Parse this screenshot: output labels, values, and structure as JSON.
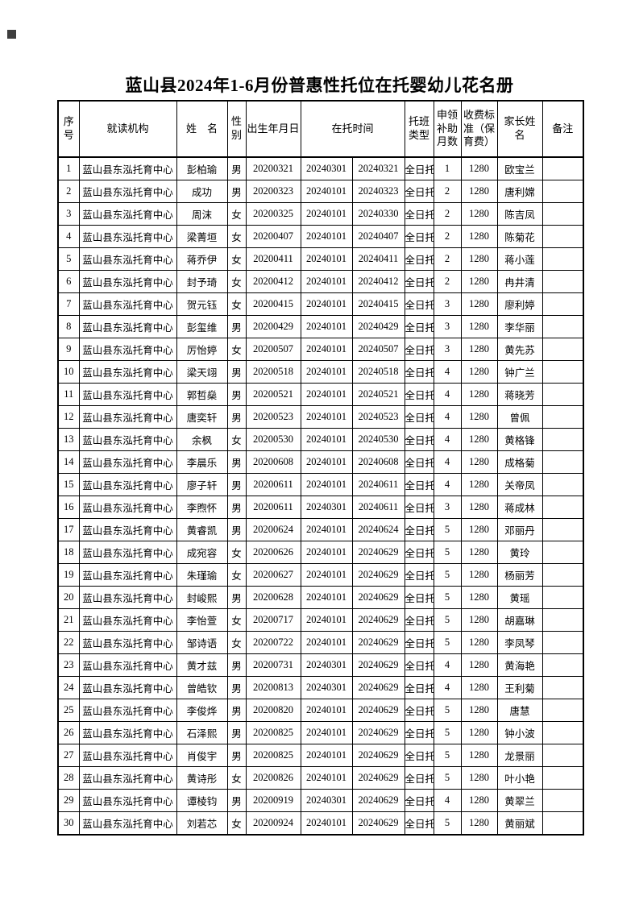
{
  "page": {
    "title": "蓝山县2024年1-6月份普惠性托位在托婴幼儿花名册"
  },
  "colors": {
    "ink": "#000000",
    "paper": "#ffffff"
  },
  "table": {
    "headers": {
      "no": "序号",
      "org": "就读机构",
      "name": "姓　名",
      "gender": "性别",
      "birth": "出生年月日",
      "period": "在托时间",
      "type": "托班类型",
      "months": "申领补助月数",
      "fee": "收费标准（保育费）",
      "parent": "家长姓名",
      "note": "备注"
    },
    "columns": [
      "no",
      "org",
      "name",
      "gender",
      "birth",
      "start",
      "end",
      "type",
      "months",
      "fee",
      "parent",
      "note"
    ],
    "rows": [
      [
        "1",
        "蓝山县东泓托育中心",
        "彭柏瑜",
        "男",
        "20200321",
        "20240301",
        "20240321",
        "全日托",
        "1",
        "1280",
        "欧宝兰",
        ""
      ],
      [
        "2",
        "蓝山县东泓托育中心",
        "成功",
        "男",
        "20200323",
        "20240101",
        "20240323",
        "全日托",
        "2",
        "1280",
        "唐利嫦",
        ""
      ],
      [
        "3",
        "蓝山县东泓托育中心",
        "周沫",
        "女",
        "20200325",
        "20240101",
        "20240330",
        "全日托",
        "2",
        "1280",
        "陈吉凤",
        ""
      ],
      [
        "4",
        "蓝山县东泓托育中心",
        "梁菁垣",
        "女",
        "20200407",
        "20240101",
        "20240407",
        "全日托",
        "2",
        "1280",
        "陈菊花",
        ""
      ],
      [
        "5",
        "蓝山县东泓托育中心",
        "蒋乔伊",
        "女",
        "20200411",
        "20240101",
        "20240411",
        "全日托",
        "2",
        "1280",
        "蒋小莲",
        ""
      ],
      [
        "6",
        "蓝山县东泓托育中心",
        "封予琦",
        "女",
        "20200412",
        "20240101",
        "20240412",
        "全日托",
        "2",
        "1280",
        "冉井清",
        ""
      ],
      [
        "7",
        "蓝山县东泓托育中心",
        "贺元钰",
        "女",
        "20200415",
        "20240101",
        "20240415",
        "全日托",
        "3",
        "1280",
        "廖利婷",
        ""
      ],
      [
        "8",
        "蓝山县东泓托育中心",
        "彭玺维",
        "男",
        "20200429",
        "20240101",
        "20240429",
        "全日托",
        "3",
        "1280",
        "李华丽",
        ""
      ],
      [
        "9",
        "蓝山县东泓托育中心",
        "厉怡婷",
        "女",
        "20200507",
        "20240101",
        "20240507",
        "全日托",
        "3",
        "1280",
        "黄先苏",
        ""
      ],
      [
        "10",
        "蓝山县东泓托育中心",
        "梁天翊",
        "男",
        "20200518",
        "20240101",
        "20240518",
        "全日托",
        "4",
        "1280",
        "钟广兰",
        ""
      ],
      [
        "11",
        "蓝山县东泓托育中心",
        "郭哲燊",
        "男",
        "20200521",
        "20240101",
        "20240521",
        "全日托",
        "4",
        "1280",
        "蒋晓芳",
        ""
      ],
      [
        "12",
        "蓝山县东泓托育中心",
        "唐奕轩",
        "男",
        "20200523",
        "20240101",
        "20240523",
        "全日托",
        "4",
        "1280",
        "曾佩",
        ""
      ],
      [
        "13",
        "蓝山县东泓托育中心",
        "余枫",
        "女",
        "20200530",
        "20240101",
        "20240530",
        "全日托",
        "4",
        "1280",
        "黄格锋",
        ""
      ],
      [
        "14",
        "蓝山县东泓托育中心",
        "李晨乐",
        "男",
        "20200608",
        "20240101",
        "20240608",
        "全日托",
        "4",
        "1280",
        "成格菊",
        ""
      ],
      [
        "15",
        "蓝山县东泓托育中心",
        "廖子轩",
        "男",
        "20200611",
        "20240101",
        "20240611",
        "全日托",
        "4",
        "1280",
        "关帝凤",
        ""
      ],
      [
        "16",
        "蓝山县东泓托育中心",
        "李煦怀",
        "男",
        "20200611",
        "20240301",
        "20240611",
        "全日托",
        "3",
        "1280",
        "蒋成林",
        ""
      ],
      [
        "17",
        "蓝山县东泓托育中心",
        "黄睿凯",
        "男",
        "20200624",
        "20240101",
        "20240624",
        "全日托",
        "5",
        "1280",
        "邓丽丹",
        ""
      ],
      [
        "18",
        "蓝山县东泓托育中心",
        "成宛容",
        "女",
        "20200626",
        "20240101",
        "20240629",
        "全日托",
        "5",
        "1280",
        "黄玲",
        ""
      ],
      [
        "19",
        "蓝山县东泓托育中心",
        "朱瑾瑜",
        "女",
        "20200627",
        "20240101",
        "20240629",
        "全日托",
        "5",
        "1280",
        "杨丽芳",
        ""
      ],
      [
        "20",
        "蓝山县东泓托育中心",
        "封峻熙",
        "男",
        "20200628",
        "20240101",
        "20240629",
        "全日托",
        "5",
        "1280",
        "黄瑶",
        ""
      ],
      [
        "21",
        "蓝山县东泓托育中心",
        "李怡萱",
        "女",
        "20200717",
        "20240101",
        "20240629",
        "全日托",
        "5",
        "1280",
        "胡嘉琳",
        ""
      ],
      [
        "22",
        "蓝山县东泓托育中心",
        "邹诗语",
        "女",
        "20200722",
        "20240101",
        "20240629",
        "全日托",
        "5",
        "1280",
        "李凤琴",
        ""
      ],
      [
        "23",
        "蓝山县东泓托育中心",
        "黄才兹",
        "男",
        "20200731",
        "20240301",
        "20240629",
        "全日托",
        "4",
        "1280",
        "黄海艳",
        ""
      ],
      [
        "24",
        "蓝山县东泓托育中心",
        "曾皓钦",
        "男",
        "20200813",
        "20240301",
        "20240629",
        "全日托",
        "4",
        "1280",
        "王利菊",
        ""
      ],
      [
        "25",
        "蓝山县东泓托育中心",
        "李俊烨",
        "男",
        "20200820",
        "20240101",
        "20240629",
        "全日托",
        "5",
        "1280",
        "唐慧",
        ""
      ],
      [
        "26",
        "蓝山县东泓托育中心",
        "石泽熙",
        "男",
        "20200825",
        "20240101",
        "20240629",
        "全日托",
        "5",
        "1280",
        "钟小波",
        ""
      ],
      [
        "27",
        "蓝山县东泓托育中心",
        "肖俊宇",
        "男",
        "20200825",
        "20240101",
        "20240629",
        "全日托",
        "5",
        "1280",
        "龙景丽",
        ""
      ],
      [
        "28",
        "蓝山县东泓托育中心",
        "黄诗彤",
        "女",
        "20200826",
        "20240101",
        "20240629",
        "全日托",
        "5",
        "1280",
        "叶小艳",
        ""
      ],
      [
        "29",
        "蓝山县东泓托育中心",
        "谭棱钧",
        "男",
        "20200919",
        "20240301",
        "20240629",
        "全日托",
        "4",
        "1280",
        "黄翠兰",
        ""
      ],
      [
        "30",
        "蓝山县东泓托育中心",
        "刘若芯",
        "女",
        "20200924",
        "20240101",
        "20240629",
        "全日托",
        "5",
        "1280",
        "黄丽斌",
        ""
      ]
    ]
  }
}
